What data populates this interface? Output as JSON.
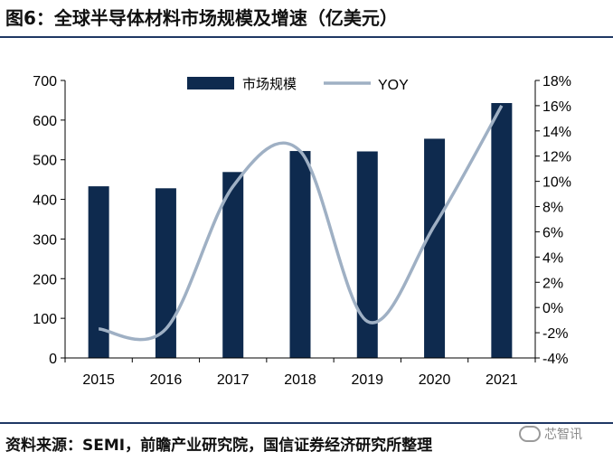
{
  "figure": {
    "title": "图6：全球半导体材料市场规模及增速（亿美元）",
    "source": "资料来源：SEMI，前瞻产业研究院，国信证券经济研究所整理",
    "watermark": "芯智讯"
  },
  "colors": {
    "bar": "#0e2a4e",
    "line": "#9fb0c4",
    "axis": "#000000",
    "rule": "#1f3864"
  },
  "chart_data": {
    "type": "bar",
    "categories": [
      "2015",
      "2016",
      "2017",
      "2018",
      "2019",
      "2020",
      "2021"
    ],
    "series": [
      {
        "name": "市场规模",
        "type": "bar",
        "axis": "left",
        "values": [
          433,
          428,
          469,
          522,
          521,
          553,
          643
        ]
      },
      {
        "name": "YOY",
        "type": "line",
        "axis": "right",
        "unit": "%",
        "values": [
          -1.7,
          -1.7,
          9.6,
          12.4,
          -1.1,
          6.5,
          16.0
        ]
      }
    ],
    "left_axis": {
      "min": 0,
      "max": 700,
      "step": 100,
      "tick_labels": [
        "0",
        "100",
        "200",
        "300",
        "400",
        "500",
        "600",
        "700"
      ]
    },
    "right_axis": {
      "min": -4,
      "max": 18,
      "step": 2,
      "tick_labels": [
        "-4%",
        "-2%",
        "0%",
        "2%",
        "4%",
        "6%",
        "8%",
        "10%",
        "12%",
        "14%",
        "16%",
        "18%"
      ]
    },
    "legend": {
      "position": "top-center"
    },
    "grid": false
  }
}
